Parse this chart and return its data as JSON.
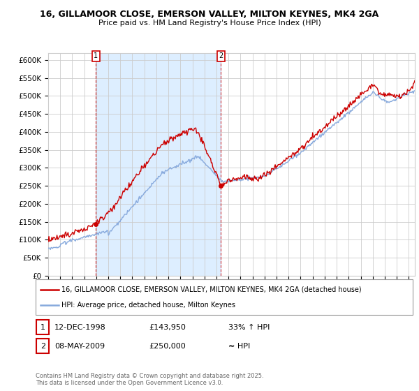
{
  "title1": "16, GILLAMOOR CLOSE, EMERSON VALLEY, MILTON KEYNES, MK4 2GA",
  "title2": "Price paid vs. HM Land Registry's House Price Index (HPI)",
  "legend_house": "16, GILLAMOOR CLOSE, EMERSON VALLEY, MILTON KEYNES, MK4 2GA (detached house)",
  "legend_hpi": "HPI: Average price, detached house, Milton Keynes",
  "point1_date": "12-DEC-1998",
  "point1_price": "£143,950",
  "point1_hpi": "33% ↑ HPI",
  "point2_date": "08-MAY-2009",
  "point2_price": "£250,000",
  "point2_hpi": "≈ HPI",
  "copyright": "Contains HM Land Registry data © Crown copyright and database right 2025.\nThis data is licensed under the Open Government Licence v3.0.",
  "house_color": "#cc0000",
  "hpi_color": "#88aadd",
  "shade_color": "#ddeeff",
  "point_color": "#cc0000",
  "grid_color": "#cccccc",
  "bg_color": "#ffffff",
  "ylim": [
    0,
    620000
  ],
  "yticks": [
    0,
    50000,
    100000,
    150000,
    200000,
    250000,
    300000,
    350000,
    400000,
    450000,
    500000,
    550000,
    600000
  ],
  "xstart_year": 1995,
  "xend_year": 2025,
  "point1_year": 1998.95,
  "point1_price_val": 143950,
  "point2_year": 2009.37,
  "point2_price_val": 250000
}
